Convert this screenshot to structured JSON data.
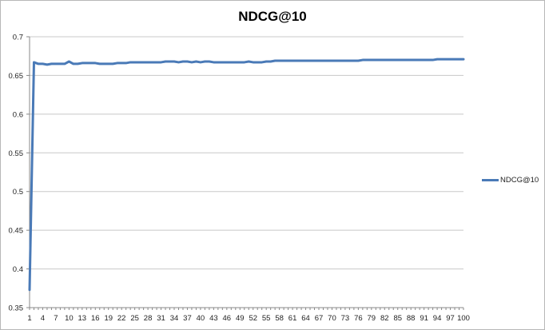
{
  "chart_data": {
    "type": "line",
    "title": "NDCG@10",
    "xlabel": "",
    "ylabel": "",
    "x": [
      1,
      2,
      3,
      4,
      5,
      6,
      7,
      8,
      9,
      10,
      11,
      12,
      13,
      14,
      15,
      16,
      17,
      18,
      19,
      20,
      21,
      22,
      23,
      24,
      25,
      26,
      27,
      28,
      29,
      30,
      31,
      32,
      33,
      34,
      35,
      36,
      37,
      38,
      39,
      40,
      41,
      42,
      43,
      44,
      45,
      46,
      47,
      48,
      49,
      50,
      51,
      52,
      53,
      54,
      55,
      56,
      57,
      58,
      59,
      60,
      61,
      62,
      63,
      64,
      65,
      66,
      67,
      68,
      69,
      70,
      71,
      72,
      73,
      74,
      75,
      76,
      77,
      78,
      79,
      80,
      81,
      82,
      83,
      84,
      85,
      86,
      87,
      88,
      89,
      90,
      91,
      92,
      93,
      94,
      95,
      96,
      97,
      98,
      99,
      100
    ],
    "x_tick_labels": [
      "1",
      "4",
      "7",
      "10",
      "13",
      "16",
      "19",
      "22",
      "25",
      "28",
      "31",
      "34",
      "37",
      "40",
      "43",
      "46",
      "49",
      "52",
      "55",
      "58",
      "61",
      "64",
      "67",
      "70",
      "73",
      "76",
      "79",
      "82",
      "85",
      "88",
      "91",
      "94",
      "97",
      "100"
    ],
    "y_tick_labels": [
      "0.35",
      "0.4",
      "0.45",
      "0.5",
      "0.55",
      "0.6",
      "0.65",
      "0.7"
    ],
    "ylim": [
      0.35,
      0.7
    ],
    "grid": true,
    "legend_position": "right",
    "series": [
      {
        "name": "NDCG@10",
        "color": "#4a7ab7",
        "values": [
          0.373,
          0.667,
          0.665,
          0.665,
          0.664,
          0.665,
          0.665,
          0.665,
          0.665,
          0.668,
          0.665,
          0.665,
          0.666,
          0.666,
          0.666,
          0.666,
          0.665,
          0.665,
          0.665,
          0.665,
          0.666,
          0.666,
          0.666,
          0.667,
          0.667,
          0.667,
          0.667,
          0.667,
          0.667,
          0.667,
          0.667,
          0.668,
          0.668,
          0.668,
          0.667,
          0.668,
          0.668,
          0.667,
          0.668,
          0.667,
          0.668,
          0.668,
          0.667,
          0.667,
          0.667,
          0.667,
          0.667,
          0.667,
          0.667,
          0.667,
          0.668,
          0.667,
          0.667,
          0.667,
          0.668,
          0.668,
          0.669,
          0.669,
          0.669,
          0.669,
          0.669,
          0.669,
          0.669,
          0.669,
          0.669,
          0.669,
          0.669,
          0.669,
          0.669,
          0.669,
          0.669,
          0.669,
          0.669,
          0.669,
          0.669,
          0.669,
          0.67,
          0.67,
          0.67,
          0.67,
          0.67,
          0.67,
          0.67,
          0.67,
          0.67,
          0.67,
          0.67,
          0.67,
          0.67,
          0.67,
          0.67,
          0.67,
          0.67,
          0.671,
          0.671,
          0.671,
          0.671,
          0.671,
          0.671,
          0.671
        ]
      }
    ]
  }
}
